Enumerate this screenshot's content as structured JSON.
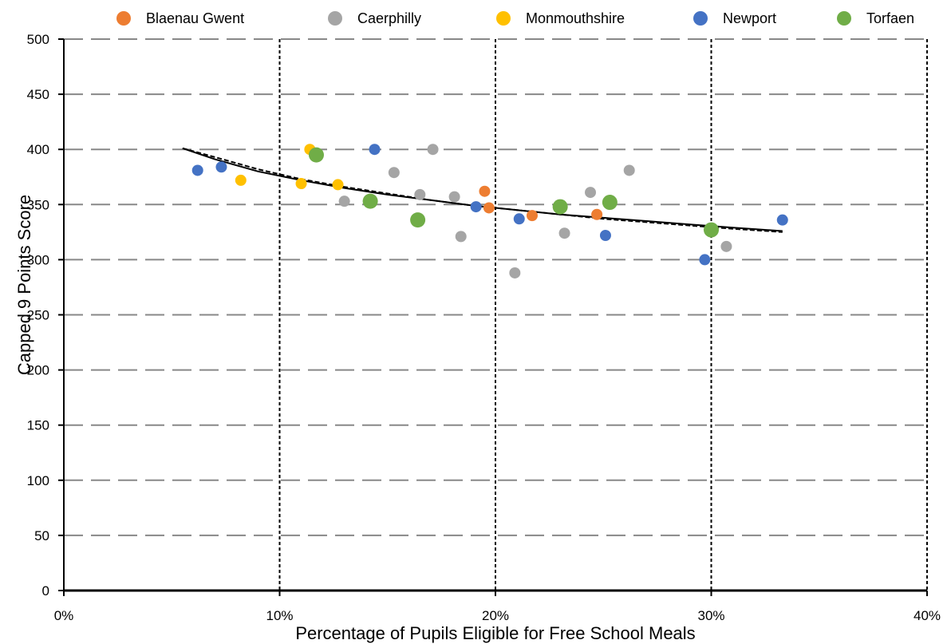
{
  "chart_data": {
    "type": "scatter",
    "title": "",
    "xlabel": "Percentage of Pupils Eligible for Free School Meals",
    "ylabel": "Capped 9 Points Score",
    "xlim": [
      0,
      0.4
    ],
    "ylim": [
      0,
      500
    ],
    "x_ticks": [
      0,
      0.1,
      0.2,
      0.3,
      0.4
    ],
    "x_tick_labels": [
      "0%",
      "10%",
      "20%",
      "30%",
      "40%"
    ],
    "y_ticks": [
      0,
      50,
      100,
      150,
      200,
      250,
      300,
      350,
      400,
      450,
      500
    ],
    "y_tick_labels": [
      "0",
      "50",
      "100",
      "150",
      "200",
      "250",
      "300",
      "350",
      "400",
      "450",
      "500"
    ],
    "grid": {
      "x": "vertical dotted",
      "y": "horizontal dashed"
    },
    "legend_position": "top",
    "series": [
      {
        "name": "Blaenau Gwent",
        "color": "#ED7D31",
        "points": [
          [
            0.195,
            362
          ],
          [
            0.197,
            347
          ],
          [
            0.217,
            340
          ],
          [
            0.247,
            341
          ]
        ]
      },
      {
        "name": "Caerphilly",
        "color": "#A5A5A5",
        "points": [
          [
            0.13,
            353
          ],
          [
            0.153,
            379
          ],
          [
            0.165,
            359
          ],
          [
            0.171,
            400
          ],
          [
            0.181,
            357
          ],
          [
            0.184,
            321
          ],
          [
            0.209,
            288
          ],
          [
            0.232,
            324
          ],
          [
            0.244,
            361
          ],
          [
            0.262,
            381
          ],
          [
            0.307,
            312
          ]
        ]
      },
      {
        "name": "Monmouthshire",
        "color": "#FFC000",
        "points": [
          [
            0.082,
            372
          ],
          [
            0.11,
            369
          ],
          [
            0.114,
            400
          ],
          [
            0.127,
            368
          ]
        ]
      },
      {
        "name": "Newport",
        "color": "#4472C4",
        "points": [
          [
            0.062,
            381
          ],
          [
            0.073,
            384
          ],
          [
            0.144,
            400
          ],
          [
            0.191,
            348
          ],
          [
            0.211,
            337
          ],
          [
            0.251,
            322
          ],
          [
            0.297,
            300
          ],
          [
            0.333,
            336
          ]
        ]
      },
      {
        "name": "Torfaen",
        "color": "#70AD47",
        "large": true,
        "points": [
          [
            0.117,
            395
          ],
          [
            0.142,
            353
          ],
          [
            0.164,
            336
          ],
          [
            0.23,
            348
          ],
          [
            0.253,
            352
          ],
          [
            0.3,
            327
          ]
        ]
      }
    ],
    "trendlines": [
      {
        "style": "solid",
        "color": "#000000",
        "points": [
          [
            0.055,
            401
          ],
          [
            0.07,
            391
          ],
          [
            0.09,
            380
          ],
          [
            0.11,
            372
          ],
          [
            0.13,
            365
          ],
          [
            0.15,
            359
          ],
          [
            0.17,
            354
          ],
          [
            0.19,
            349
          ],
          [
            0.21,
            345
          ],
          [
            0.23,
            341
          ],
          [
            0.25,
            338
          ],
          [
            0.27,
            335
          ],
          [
            0.29,
            332
          ],
          [
            0.31,
            329
          ],
          [
            0.333,
            326
          ]
        ]
      },
      {
        "style": "dashed",
        "color": "#000000",
        "points": [
          [
            0.055,
            401
          ],
          [
            0.07,
            393
          ],
          [
            0.09,
            382
          ],
          [
            0.11,
            373
          ],
          [
            0.13,
            366
          ],
          [
            0.15,
            360
          ],
          [
            0.17,
            354
          ],
          [
            0.19,
            349
          ],
          [
            0.21,
            345
          ],
          [
            0.23,
            341
          ],
          [
            0.25,
            337
          ],
          [
            0.27,
            334
          ],
          [
            0.29,
            331
          ],
          [
            0.31,
            328
          ],
          [
            0.333,
            325
          ]
        ]
      }
    ]
  }
}
